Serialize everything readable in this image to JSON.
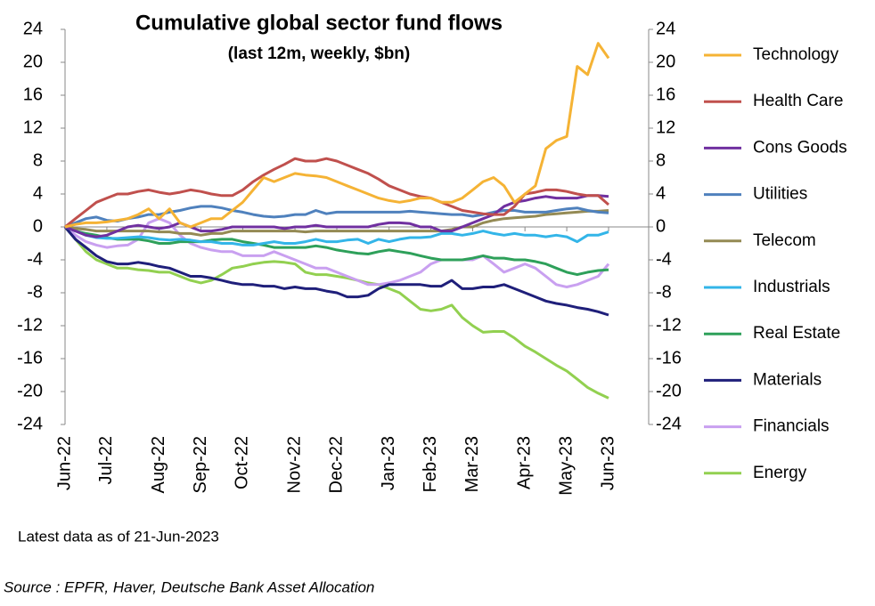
{
  "chart_data": {
    "type": "line",
    "title": "Cumulative global sector fund flows",
    "subtitle": "(last 12m, weekly, $bn)",
    "note": "Latest data as of 21-Jun-2023",
    "source": "Source : EPFR, Haver, Deutsche Bank Asset Allocation",
    "categories": [
      "Jun-22",
      null,
      null,
      null,
      "Jul-22",
      null,
      null,
      null,
      null,
      "Aug-22",
      null,
      null,
      null,
      "Sep-22",
      null,
      null,
      null,
      "Oct-22",
      null,
      null,
      null,
      null,
      "Nov-22",
      null,
      null,
      null,
      "Dec-22",
      null,
      null,
      null,
      null,
      "Jan-23",
      null,
      null,
      null,
      "Feb-23",
      null,
      null,
      null,
      "Mar-23",
      null,
      null,
      null,
      null,
      "Apr-23",
      null,
      null,
      null,
      "May-23",
      null,
      null,
      null,
      "Jun-23"
    ],
    "ylim": [
      -24,
      24
    ],
    "yticks": [
      24,
      20,
      16,
      12,
      8,
      4,
      0,
      -4,
      -8,
      -12,
      -16,
      -20,
      -24
    ],
    "right_axis_mirror": true,
    "series": [
      {
        "name": "Technology",
        "color": "#f5b335",
        "values": [
          0,
          0.3,
          0.5,
          0.5,
          0.6,
          0.8,
          1,
          1.5,
          2.2,
          1,
          2.2,
          0.5,
          0,
          0.5,
          1,
          1,
          2,
          3,
          4.5,
          6,
          5.5,
          6,
          6.5,
          6.3,
          6.2,
          6,
          5.5,
          5,
          4.5,
          4,
          3.5,
          3.2,
          3,
          3.2,
          3.5,
          3.5,
          3,
          3,
          3.5,
          4.5,
          5.5,
          6,
          5,
          3,
          4,
          5,
          9.5,
          10.5,
          11,
          19.5,
          18.5,
          22.3,
          20.5
        ]
      },
      {
        "name": "Health Care",
        "color": "#c0504d",
        "values": [
          0,
          1,
          2,
          3,
          3.5,
          4,
          4,
          4.3,
          4.5,
          4.2,
          4,
          4.2,
          4.5,
          4.3,
          4,
          3.8,
          3.8,
          4.5,
          5.5,
          6.3,
          7,
          7.6,
          8.3,
          8,
          8,
          8.3,
          8,
          7.5,
          7,
          6.5,
          5.8,
          5,
          4.5,
          4,
          3.7,
          3.5,
          3,
          2.5,
          2,
          1.8,
          1.6,
          1.5,
          1.5,
          2.5,
          4,
          4.2,
          4.5,
          4.5,
          4.3,
          4,
          3.8,
          3.8,
          2.7
        ]
      },
      {
        "name": "Cons Goods",
        "color": "#7030a0",
        "values": [
          0,
          -0.5,
          -1,
          -1.2,
          -1,
          -0.5,
          0,
          0.2,
          0,
          -0.2,
          0,
          0.5,
          0,
          -0.5,
          -0.5,
          -0.3,
          0,
          0,
          0,
          0,
          0,
          -0.2,
          0,
          0,
          0.2,
          0,
          0,
          0,
          0,
          0,
          0.3,
          0.5,
          0.5,
          0.4,
          0,
          0,
          -0.5,
          -0.5,
          0,
          0.5,
          1,
          1.5,
          2.5,
          3,
          3.2,
          3.5,
          3.7,
          3.5,
          3.5,
          3.5,
          3.8,
          3.8,
          3.7
        ]
      },
      {
        "name": "Utilities",
        "color": "#4f81bd",
        "values": [
          0,
          0.5,
          1,
          1.2,
          0.8,
          0.7,
          1,
          1.2,
          1.5,
          1.5,
          1.8,
          2,
          2.3,
          2.5,
          2.5,
          2.3,
          2,
          1.8,
          1.5,
          1.3,
          1.2,
          1.3,
          1.5,
          1.5,
          2,
          1.6,
          1.8,
          1.8,
          1.8,
          1.8,
          1.8,
          1.8,
          1.8,
          1.9,
          1.8,
          1.7,
          1.6,
          1.5,
          1.5,
          1.3,
          1.5,
          1.8,
          2,
          2,
          1.8,
          1.8,
          1.8,
          2,
          2.2,
          2.3,
          2,
          1.8,
          1.7
        ]
      },
      {
        "name": "Telecom",
        "color": "#948a54",
        "values": [
          0,
          -0.2,
          -0.3,
          -0.5,
          -0.5,
          -0.5,
          -0.5,
          -0.5,
          -0.5,
          -0.6,
          -0.6,
          -0.8,
          -0.8,
          -1,
          -0.8,
          -0.8,
          -0.5,
          -0.5,
          -0.5,
          -0.5,
          -0.5,
          -0.5,
          -0.5,
          -0.6,
          -0.5,
          -0.5,
          -0.5,
          -0.5,
          -0.5,
          -0.5,
          -0.5,
          -0.5,
          -0.5,
          -0.5,
          -0.5,
          -0.5,
          -0.5,
          -0.3,
          0,
          0,
          0.5,
          0.8,
          1,
          1.1,
          1.2,
          1.3,
          1.5,
          1.6,
          1.7,
          1.8,
          1.9,
          1.9,
          2
        ]
      },
      {
        "name": "Industrials",
        "color": "#33b5e8",
        "values": [
          0,
          -0.5,
          -1,
          -1.3,
          -1.4,
          -1.4,
          -1.3,
          -1.2,
          -1.3,
          -1.5,
          -1.6,
          -1.5,
          -1.6,
          -1.8,
          -1.8,
          -2,
          -2,
          -2.2,
          -2.2,
          -2,
          -1.8,
          -2,
          -2,
          -1.8,
          -1.5,
          -1.8,
          -1.8,
          -1.6,
          -1.5,
          -2,
          -1.5,
          -1.8,
          -1.5,
          -1.3,
          -1.3,
          -1.2,
          -0.8,
          -0.8,
          -1,
          -0.8,
          -0.5,
          -0.8,
          -1,
          -0.8,
          -1,
          -1,
          -1.2,
          -1,
          -1.2,
          -1.8,
          -1,
          -1,
          -0.6
        ]
      },
      {
        "name": "Real Estate",
        "color": "#2ea05a",
        "values": [
          0,
          -0.5,
          -0.8,
          -1,
          -1.3,
          -1.5,
          -1.5,
          -1.5,
          -1.7,
          -2,
          -2,
          -1.8,
          -1.8,
          -1.8,
          -1.6,
          -1.5,
          -1.5,
          -1.8,
          -2,
          -2.2,
          -2.5,
          -2.5,
          -2.5,
          -2.5,
          -2.3,
          -2.5,
          -2.8,
          -3,
          -3.2,
          -3.3,
          -3,
          -2.8,
          -3,
          -3.2,
          -3.5,
          -3.8,
          -4,
          -4,
          -4,
          -3.8,
          -3.5,
          -3.8,
          -3.8,
          -4,
          -4,
          -4.2,
          -4.5,
          -5,
          -5.5,
          -5.8,
          -5.5,
          -5.3,
          -5.2
        ]
      },
      {
        "name": "Materials",
        "color": "#1f1f7a",
        "values": [
          0,
          -1.5,
          -2.5,
          -3.5,
          -4.2,
          -4.5,
          -4.5,
          -4.3,
          -4.5,
          -4.8,
          -5,
          -5.5,
          -6,
          -6,
          -6.2,
          -6.5,
          -6.8,
          -7,
          -7,
          -7.2,
          -7.2,
          -7.5,
          -7.3,
          -7.5,
          -7.5,
          -7.8,
          -8,
          -8.5,
          -8.5,
          -8.3,
          -7.5,
          -7,
          -7,
          -7,
          -7,
          -7.2,
          -7.2,
          -6.5,
          -7.5,
          -7.5,
          -7.3,
          -7.3,
          -7,
          -7.5,
          -8,
          -8.5,
          -9,
          -9.3,
          -9.5,
          -9.8,
          -10,
          -10.3,
          -10.7
        ]
      },
      {
        "name": "Financials",
        "color": "#c9a0f0",
        "values": [
          0,
          -1,
          -1.8,
          -2.2,
          -2.5,
          -2.3,
          -2.2,
          -1.5,
          0.5,
          1,
          0.5,
          -1,
          -2,
          -2.5,
          -2.8,
          -3,
          -3,
          -3.5,
          -3.5,
          -3.5,
          -3,
          -3.5,
          -4,
          -4.5,
          -5,
          -5,
          -5.5,
          -6,
          -6.5,
          -7,
          -7,
          -6.8,
          -6.5,
          -6,
          -5.5,
          -4.5,
          -4,
          -4,
          -4,
          -4,
          -3.5,
          -4.5,
          -5.5,
          -5,
          -4.5,
          -5,
          -6,
          -7,
          -7.3,
          -7,
          -6.5,
          -6,
          -4.5
        ]
      },
      {
        "name": "Energy",
        "color": "#92d050",
        "values": [
          0,
          -1.5,
          -3,
          -4,
          -4.5,
          -5,
          -5,
          -5.2,
          -5.3,
          -5.5,
          -5.5,
          -6,
          -6.5,
          -6.8,
          -6.5,
          -5.8,
          -5,
          -4.8,
          -4.5,
          -4.3,
          -4.2,
          -4.3,
          -4.5,
          -5.5,
          -5.8,
          -5.8,
          -6,
          -6.2,
          -6.5,
          -6.8,
          -7,
          -7.5,
          -8,
          -9,
          -10,
          -10.2,
          -10,
          -9.5,
          -11,
          -12,
          -12.8,
          -12.7,
          -12.7,
          -13.5,
          -14.5,
          -15.2,
          -16,
          -16.8,
          -17.5,
          -18.5,
          -19.5,
          -20.2,
          -20.8
        ]
      }
    ]
  }
}
